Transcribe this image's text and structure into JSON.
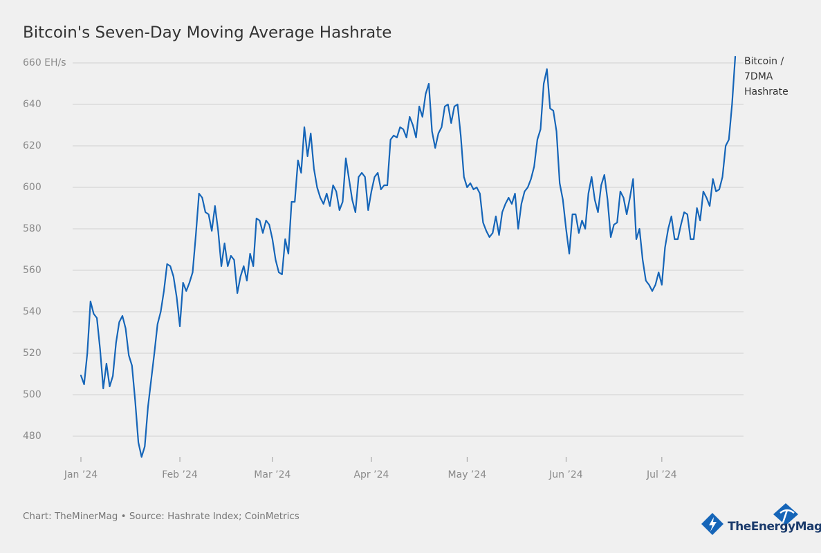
{
  "chart_data": {
    "type": "line",
    "title": "Bitcoin's Seven-Day Moving Average Hashrate",
    "source": "Chart: TheMinerMag • Source: Hashrate Index; CoinMetrics",
    "logo": "TheEnergyMag",
    "categories": [
      "Jan ’24",
      null,
      null,
      null,
      null,
      null,
      null,
      null,
      null,
      null,
      null,
      null,
      null,
      null,
      null,
      null,
      null,
      null,
      null,
      null,
      null,
      null,
      null,
      null,
      null,
      null,
      null,
      null,
      null,
      null,
      null,
      "Feb ’24",
      null,
      null,
      null,
      null,
      null,
      null,
      null,
      null,
      null,
      null,
      null,
      null,
      null,
      null,
      null,
      null,
      null,
      null,
      null,
      null,
      null,
      null,
      null,
      null,
      null,
      null,
      null,
      null,
      "Mar ’24",
      null,
      null,
      null,
      null,
      null,
      null,
      null,
      null,
      null,
      null,
      null,
      null,
      null,
      null,
      null,
      null,
      null,
      null,
      null,
      null,
      null,
      null,
      null,
      null,
      null,
      null,
      null,
      null,
      null,
      null,
      "Apr ’24",
      null,
      null,
      null,
      null,
      null,
      null,
      null,
      null,
      null,
      null,
      null,
      null,
      null,
      null,
      null,
      null,
      null,
      null,
      null,
      null,
      null,
      null,
      null,
      null,
      null,
      null,
      null,
      null,
      null,
      "May ’24",
      null,
      null,
      null,
      null,
      null,
      null,
      null,
      null,
      null,
      null,
      null,
      null,
      null,
      null,
      null,
      null,
      null,
      null,
      null,
      null,
      null,
      null,
      null,
      null,
      null,
      null,
      null,
      null,
      null,
      null,
      "Jun ’24",
      null,
      null,
      null,
      null,
      null,
      null,
      null,
      null,
      null,
      null,
      null,
      null,
      null,
      null,
      null,
      null,
      null,
      null,
      null,
      null,
      null,
      null,
      null,
      null,
      null,
      null,
      null,
      null,
      null,
      "Jul ’24",
      null,
      null,
      null,
      null,
      null,
      null,
      null,
      null,
      null,
      null,
      null,
      null,
      null,
      null,
      null,
      null,
      null,
      null,
      null,
      null,
      null,
      null,
      null
    ],
    "series": [
      {
        "name": "Bitcoin / 7DMA Hashrate",
        "color": "#1565b8",
        "values": [
          509.3,
          505,
          520,
          545,
          539,
          537,
          522,
          503,
          515,
          504,
          509,
          525,
          535,
          538,
          532,
          519,
          514,
          497,
          477,
          470,
          475,
          494,
          507,
          520,
          534,
          540,
          550,
          563,
          562,
          557,
          547,
          533,
          554,
          550,
          554,
          559,
          577,
          597,
          595,
          588,
          587,
          579,
          591,
          579,
          562,
          573,
          562,
          567,
          565,
          549,
          557,
          562,
          555,
          568,
          562,
          585,
          584,
          578,
          584,
          582,
          575,
          565,
          559,
          558,
          575,
          568,
          593,
          593,
          613,
          607,
          629,
          615,
          626,
          609,
          600,
          595,
          592,
          597,
          591,
          601,
          598,
          589,
          593,
          614,
          604,
          594,
          588,
          605,
          607,
          605,
          589,
          598,
          605,
          607,
          599,
          601,
          601,
          623,
          625,
          624,
          629,
          628,
          624,
          634,
          630,
          624,
          639,
          634,
          645,
          650,
          627,
          619,
          626,
          629,
          639,
          640,
          631,
          639,
          640,
          625,
          605,
          600,
          602,
          599,
          600,
          597,
          583,
          579,
          576,
          578,
          586,
          577,
          588,
          592,
          595,
          592,
          597,
          580,
          592,
          598,
          600,
          604,
          610,
          623,
          628,
          650,
          657,
          638,
          637,
          627,
          602,
          594,
          580,
          568,
          587,
          587,
          578,
          584,
          580,
          597,
          605,
          594,
          588,
          601,
          606,
          594,
          576,
          582,
          583,
          598,
          595,
          587,
          595,
          604,
          575,
          580,
          565,
          555,
          553,
          550,
          553,
          559,
          553,
          571,
          580,
          586,
          575,
          575,
          582,
          588,
          587,
          575,
          575,
          590,
          584,
          598,
          595,
          591,
          604,
          598,
          599,
          605,
          620,
          623,
          640,
          663
        ]
      }
    ],
    "ylim": [
      470,
      663
    ],
    "yticks": [
      480,
      500,
      520,
      540,
      560,
      580,
      600,
      620,
      640,
      {
        "value": 660,
        "label": "660 EH/s"
      }
    ],
    "grid": true
  }
}
